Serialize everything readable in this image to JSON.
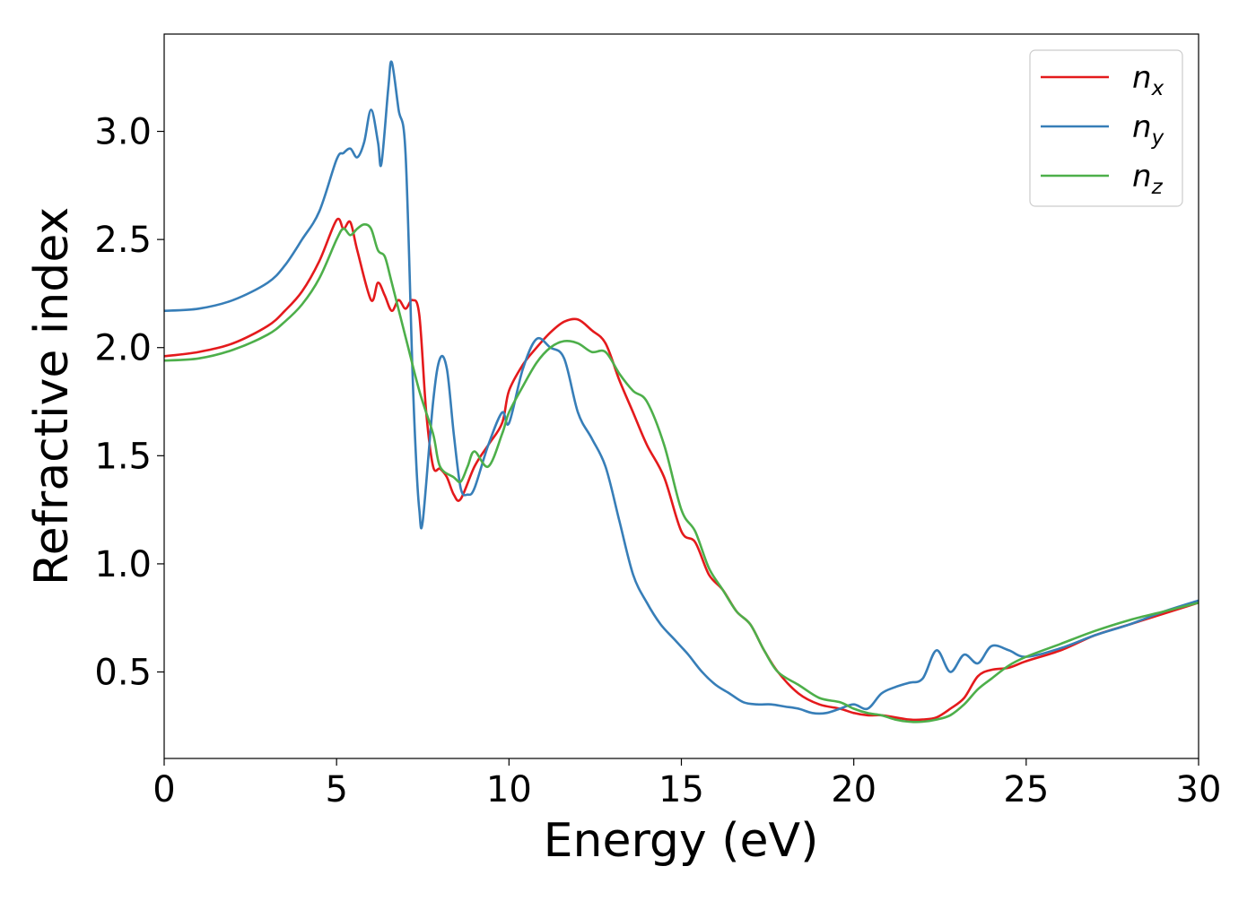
{
  "chart_data": {
    "type": "line",
    "title": "",
    "xlabel": "Energy (eV)",
    "ylabel": "Refractive index",
    "xlim": [
      0,
      30
    ],
    "ylim": [
      0.1,
      3.45
    ],
    "xticks": [
      0,
      5,
      10,
      15,
      20,
      25,
      30
    ],
    "yticks": [
      0.5,
      1.0,
      1.5,
      2.0,
      2.5,
      3.0
    ],
    "xtick_labels": [
      "0",
      "5",
      "10",
      "15",
      "20",
      "25",
      "30"
    ],
    "ytick_labels": [
      "0.5",
      "1.0",
      "1.5",
      "2.0",
      "2.5",
      "3.0"
    ],
    "grid": false,
    "legend_position": "top-right",
    "series": [
      {
        "name": "n_x",
        "legend_main": "n",
        "legend_sub": "x",
        "color": "#e41a1c",
        "x": [
          0,
          1,
          2,
          3,
          3.5,
          4,
          4.5,
          5,
          5.2,
          5.4,
          5.6,
          6,
          6.2,
          6.4,
          6.6,
          6.8,
          7,
          7.2,
          7.4,
          7.6,
          7.8,
          8,
          8.2,
          8.4,
          8.6,
          9,
          9.4,
          9.8,
          10,
          10.4,
          10.8,
          11.2,
          11.6,
          12,
          12.4,
          12.8,
          13.2,
          13.6,
          14,
          14.5,
          15,
          15.4,
          15.8,
          16.2,
          16.6,
          17,
          17.4,
          17.8,
          18.4,
          19,
          19.6,
          20,
          20.4,
          20.8,
          21.2,
          21.6,
          22,
          22.4,
          22.8,
          23.2,
          23.6,
          24,
          24.5,
          25,
          26,
          27,
          28,
          29,
          30
        ],
        "y": [
          1.96,
          1.98,
          2.02,
          2.1,
          2.17,
          2.26,
          2.4,
          2.59,
          2.55,
          2.58,
          2.45,
          2.22,
          2.3,
          2.24,
          2.17,
          2.22,
          2.18,
          2.22,
          2.15,
          1.7,
          1.45,
          1.44,
          1.4,
          1.32,
          1.3,
          1.45,
          1.55,
          1.65,
          1.8,
          1.92,
          2.0,
          2.07,
          2.12,
          2.13,
          2.08,
          2.02,
          1.85,
          1.7,
          1.55,
          1.4,
          1.15,
          1.1,
          0.95,
          0.88,
          0.78,
          0.72,
          0.6,
          0.5,
          0.4,
          0.35,
          0.33,
          0.31,
          0.3,
          0.3,
          0.29,
          0.28,
          0.28,
          0.29,
          0.33,
          0.38,
          0.48,
          0.51,
          0.52,
          0.55,
          0.6,
          0.67,
          0.72,
          0.77,
          0.82
        ]
      },
      {
        "name": "n_y",
        "legend_main": "n",
        "legend_sub": "y",
        "color": "#377eb8",
        "x": [
          0,
          1,
          2,
          3,
          3.5,
          4,
          4.5,
          5,
          5.2,
          5.4,
          5.6,
          5.8,
          6,
          6.2,
          6.3,
          6.5,
          6.6,
          6.8,
          7,
          7.2,
          7.3,
          7.4,
          7.5,
          7.8,
          8,
          8.2,
          8.4,
          8.6,
          8.8,
          9,
          9.4,
          9.8,
          10,
          10.4,
          10.8,
          11.2,
          11.6,
          12,
          12.4,
          12.8,
          13.2,
          13.6,
          14,
          14.4,
          14.8,
          15.2,
          15.6,
          16,
          16.4,
          16.8,
          17.2,
          17.6,
          18,
          18.4,
          18.8,
          19.2,
          19.6,
          20,
          20.4,
          20.8,
          21.2,
          21.6,
          22,
          22.4,
          22.8,
          23.2,
          23.6,
          24,
          24.5,
          25,
          26,
          27,
          28,
          29,
          30
        ],
        "y": [
          2.17,
          2.18,
          2.22,
          2.3,
          2.38,
          2.5,
          2.63,
          2.87,
          2.9,
          2.92,
          2.88,
          2.95,
          3.1,
          2.95,
          2.85,
          3.2,
          3.32,
          3.1,
          2.9,
          1.9,
          1.5,
          1.25,
          1.2,
          1.75,
          1.95,
          1.9,
          1.6,
          1.35,
          1.32,
          1.35,
          1.55,
          1.7,
          1.65,
          1.9,
          2.04,
          2.0,
          1.95,
          1.7,
          1.58,
          1.45,
          1.2,
          0.95,
          0.82,
          0.72,
          0.65,
          0.58,
          0.5,
          0.44,
          0.4,
          0.36,
          0.35,
          0.35,
          0.34,
          0.33,
          0.31,
          0.31,
          0.33,
          0.35,
          0.33,
          0.4,
          0.43,
          0.45,
          0.47,
          0.6,
          0.5,
          0.58,
          0.54,
          0.62,
          0.6,
          0.57,
          0.61,
          0.67,
          0.72,
          0.78,
          0.83
        ]
      },
      {
        "name": "n_z",
        "legend_main": "n",
        "legend_sub": "z",
        "color": "#4daf4a",
        "x": [
          0,
          1,
          2,
          3,
          3.5,
          4,
          4.5,
          5,
          5.2,
          5.4,
          5.6,
          5.8,
          6,
          6.2,
          6.4,
          6.6,
          7,
          7.4,
          7.8,
          8,
          8.4,
          8.6,
          8.8,
          9,
          9.4,
          9.8,
          10,
          10.4,
          10.8,
          11.2,
          11.6,
          12,
          12.4,
          12.8,
          13.2,
          13.6,
          14,
          14.5,
          15,
          15.4,
          15.8,
          16.2,
          16.6,
          17,
          17.4,
          17.8,
          18.4,
          19,
          19.6,
          20,
          20.4,
          20.8,
          21.2,
          21.6,
          22,
          22.4,
          22.8,
          23.2,
          23.6,
          24,
          24.5,
          25,
          26,
          27,
          28,
          29,
          30
        ],
        "y": [
          1.94,
          1.95,
          1.99,
          2.06,
          2.12,
          2.2,
          2.32,
          2.5,
          2.55,
          2.52,
          2.55,
          2.57,
          2.55,
          2.45,
          2.42,
          2.3,
          2.05,
          1.8,
          1.6,
          1.45,
          1.4,
          1.38,
          1.45,
          1.52,
          1.45,
          1.6,
          1.7,
          1.82,
          1.93,
          2.0,
          2.03,
          2.02,
          1.98,
          1.98,
          1.88,
          1.8,
          1.75,
          1.55,
          1.25,
          1.15,
          0.98,
          0.88,
          0.78,
          0.72,
          0.6,
          0.5,
          0.44,
          0.38,
          0.36,
          0.33,
          0.31,
          0.3,
          0.28,
          0.27,
          0.27,
          0.28,
          0.3,
          0.35,
          0.42,
          0.47,
          0.53,
          0.57,
          0.63,
          0.69,
          0.74,
          0.78,
          0.82
        ]
      }
    ]
  }
}
